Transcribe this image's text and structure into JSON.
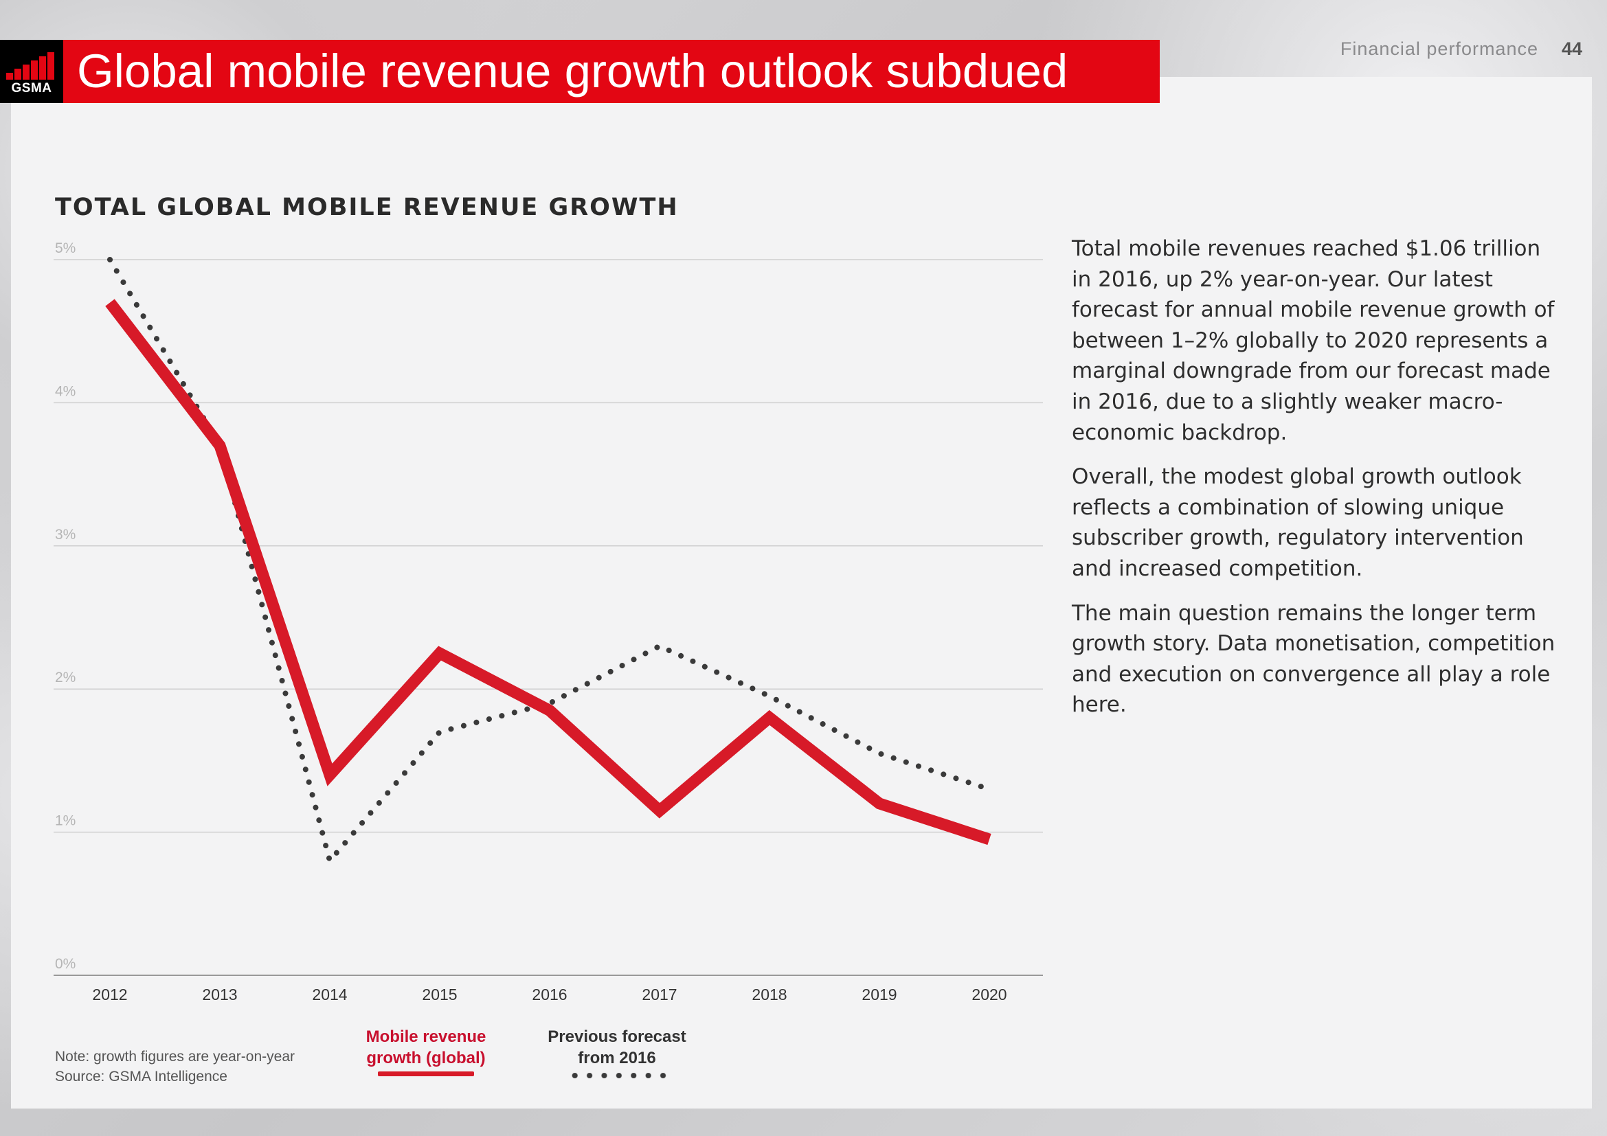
{
  "header": {
    "logo_text": "GSMA",
    "title": "Global mobile revenue growth outlook subdued",
    "section": "Financial performance",
    "page_number": "44"
  },
  "colors": {
    "brand_red": "#e30613",
    "series_red": "#d71a28",
    "dotted": "#3a3a3a"
  },
  "chart_data": {
    "type": "line",
    "title": "TOTAL GLOBAL MOBILE REVENUE GROWTH",
    "xlabel": "",
    "ylabel": "",
    "ylim": [
      0,
      5
    ],
    "y_ticks": [
      {
        "value": 5,
        "label": "5%"
      },
      {
        "value": 4,
        "label": "4%"
      },
      {
        "value": 3,
        "label": "3%"
      },
      {
        "value": 2,
        "label": "2%"
      },
      {
        "value": 1,
        "label": "1%"
      },
      {
        "value": 0,
        "label": "0%"
      }
    ],
    "grid": true,
    "categories": [
      "2012",
      "2013",
      "2014",
      "2015",
      "2016",
      "2017",
      "2018",
      "2019",
      "2020"
    ],
    "series": [
      {
        "name": "Mobile revenue growth (global)",
        "style": "solid",
        "values": [
          4.7,
          3.7,
          1.4,
          2.25,
          1.85,
          1.15,
          1.8,
          1.2,
          0.95
        ]
      },
      {
        "name": "Previous forecast from 2016",
        "style": "dotted",
        "values": [
          5.0,
          3.7,
          0.8,
          1.7,
          1.9,
          2.3,
          1.95,
          1.55,
          1.3
        ]
      }
    ]
  },
  "legend": {
    "red_line1": "Mobile revenue",
    "red_line2": "growth (global)",
    "dotted_line1": "Previous forecast",
    "dotted_line2": "from 2016"
  },
  "notes": {
    "note": "Note: growth figures are year-on-year",
    "source": "Source: GSMA Intelligence"
  },
  "body": {
    "p1": "Total mobile revenues reached $1.06 trillion in 2016, up 2% year-on-year. Our latest forecast for annual mobile revenue growth of between 1–2% globally to 2020 represents a marginal downgrade from our forecast made in 2016, due to a slightly weaker macro-economic backdrop.",
    "p2": "Overall, the modest global growth outlook reflects a combination of slowing unique subscriber growth, regulatory intervention and increased competition.",
    "p3": "The main question remains the longer term growth story. Data monetisation, competition and execution on convergence all play a role here."
  }
}
